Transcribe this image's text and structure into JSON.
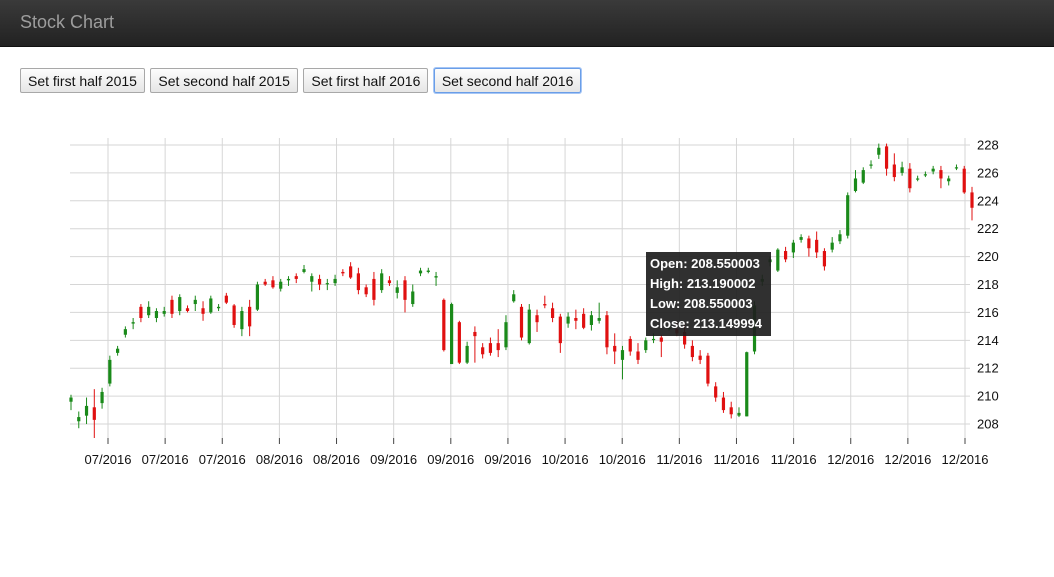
{
  "navbar": {
    "title": "Stock Chart"
  },
  "buttons": [
    {
      "label": "Set first half 2015"
    },
    {
      "label": "Set second half 2015"
    },
    {
      "label": "Set first half 2016"
    },
    {
      "label": "Set second half 2016"
    }
  ],
  "tooltip": {
    "open": "Open: 208.550003",
    "high": "High: 213.190002",
    "low": "Low: 208.550003",
    "close": "Close: 213.149994"
  },
  "colors": {
    "up": "#1a8a1a",
    "down": "#e01010",
    "grid": "#d6d6d6"
  },
  "chart_data": {
    "type": "candlestick",
    "y_ticks": [
      208,
      210,
      212,
      214,
      216,
      218,
      220,
      222,
      224,
      226,
      228
    ],
    "x_tick_labels": [
      "07/2016",
      "07/2016",
      "07/2016",
      "08/2016",
      "08/2016",
      "09/2016",
      "09/2016",
      "09/2016",
      "10/2016",
      "10/2016",
      "11/2016",
      "11/2016",
      "11/2016",
      "12/2016",
      "12/2016",
      "12/2016"
    ],
    "ylim": [
      207.0,
      228.5
    ],
    "y_axis_position": "right",
    "grid": true,
    "series": [
      {
        "o": 209.6,
        "h": 210.1,
        "l": 209.0,
        "c": 209.9
      },
      {
        "o": 208.2,
        "h": 208.9,
        "l": 207.7,
        "c": 208.5
      },
      {
        "o": 208.6,
        "h": 209.9,
        "l": 208.0,
        "c": 209.3
      },
      {
        "o": 209.2,
        "h": 210.5,
        "l": 207.0,
        "c": 208.3
      },
      {
        "o": 209.5,
        "h": 210.6,
        "l": 209.1,
        "c": 210.3
      },
      {
        "o": 210.9,
        "h": 212.9,
        "l": 210.7,
        "c": 212.6
      },
      {
        "o": 213.1,
        "h": 213.6,
        "l": 212.9,
        "c": 213.4
      },
      {
        "o": 214.4,
        "h": 215.0,
        "l": 214.2,
        "c": 214.8
      },
      {
        "o": 215.2,
        "h": 215.6,
        "l": 214.8,
        "c": 215.3
      },
      {
        "o": 216.4,
        "h": 216.6,
        "l": 215.3,
        "c": 215.6
      },
      {
        "o": 215.8,
        "h": 216.8,
        "l": 215.6,
        "c": 216.4
      },
      {
        "o": 215.6,
        "h": 216.3,
        "l": 215.3,
        "c": 216.1
      },
      {
        "o": 215.9,
        "h": 216.4,
        "l": 215.7,
        "c": 216.1
      },
      {
        "o": 216.9,
        "h": 217.2,
        "l": 215.6,
        "c": 215.9
      },
      {
        "o": 216.1,
        "h": 217.3,
        "l": 215.8,
        "c": 217.1
      },
      {
        "o": 216.3,
        "h": 216.5,
        "l": 216.0,
        "c": 216.1
      },
      {
        "o": 216.6,
        "h": 217.2,
        "l": 216.1,
        "c": 216.9
      },
      {
        "o": 216.3,
        "h": 216.8,
        "l": 215.4,
        "c": 215.9
      },
      {
        "o": 216.0,
        "h": 217.2,
        "l": 215.9,
        "c": 217.0
      },
      {
        "o": 216.3,
        "h": 216.6,
        "l": 216.1,
        "c": 216.4
      },
      {
        "o": 217.2,
        "h": 217.4,
        "l": 216.6,
        "c": 216.7
      },
      {
        "o": 216.5,
        "h": 216.6,
        "l": 214.9,
        "c": 215.1
      },
      {
        "o": 214.8,
        "h": 216.4,
        "l": 214.3,
        "c": 216.1
      },
      {
        "o": 216.4,
        "h": 216.9,
        "l": 214.3,
        "c": 215.0
      },
      {
        "o": 216.2,
        "h": 218.2,
        "l": 216.1,
        "c": 218.0
      },
      {
        "o": 218.2,
        "h": 218.4,
        "l": 217.9,
        "c": 218.0
      },
      {
        "o": 218.3,
        "h": 218.6,
        "l": 217.7,
        "c": 217.8
      },
      {
        "o": 217.7,
        "h": 218.4,
        "l": 217.5,
        "c": 218.2
      },
      {
        "o": 218.3,
        "h": 218.6,
        "l": 217.9,
        "c": 218.4
      },
      {
        "o": 218.6,
        "h": 218.8,
        "l": 218.1,
        "c": 218.4
      },
      {
        "o": 218.9,
        "h": 219.4,
        "l": 218.8,
        "c": 219.1
      },
      {
        "o": 218.2,
        "h": 218.8,
        "l": 217.5,
        "c": 218.6
      },
      {
        "o": 218.4,
        "h": 218.7,
        "l": 217.6,
        "c": 218.0
      },
      {
        "o": 218.1,
        "h": 218.4,
        "l": 217.6,
        "c": 218.1
      },
      {
        "o": 218.1,
        "h": 218.7,
        "l": 217.9,
        "c": 218.4
      },
      {
        "o": 218.9,
        "h": 219.1,
        "l": 218.6,
        "c": 218.8
      },
      {
        "o": 219.3,
        "h": 219.6,
        "l": 218.4,
        "c": 218.5
      },
      {
        "o": 218.8,
        "h": 219.2,
        "l": 217.3,
        "c": 217.6
      },
      {
        "o": 217.8,
        "h": 218.0,
        "l": 217.1,
        "c": 217.3
      },
      {
        "o": 218.4,
        "h": 218.9,
        "l": 216.5,
        "c": 216.9
      },
      {
        "o": 217.6,
        "h": 219.1,
        "l": 217.4,
        "c": 218.8
      },
      {
        "o": 218.3,
        "h": 218.6,
        "l": 217.9,
        "c": 218.1
      },
      {
        "o": 217.4,
        "h": 218.3,
        "l": 217.0,
        "c": 217.8
      },
      {
        "o": 218.3,
        "h": 218.6,
        "l": 216.0,
        "c": 216.9
      },
      {
        "o": 216.6,
        "h": 218.0,
        "l": 216.4,
        "c": 217.5
      },
      {
        "o": 218.8,
        "h": 219.2,
        "l": 218.6,
        "c": 219.0
      },
      {
        "o": 218.9,
        "h": 219.2,
        "l": 218.8,
        "c": 219.0
      },
      {
        "o": 218.5,
        "h": 218.9,
        "l": 217.9,
        "c": 218.6
      },
      {
        "o": 216.9,
        "h": 217.0,
        "l": 213.2,
        "c": 213.3
      },
      {
        "o": 212.3,
        "h": 216.7,
        "l": 212.3,
        "c": 216.6
      },
      {
        "o": 215.3,
        "h": 215.4,
        "l": 212.3,
        "c": 212.4
      },
      {
        "o": 212.4,
        "h": 213.9,
        "l": 212.3,
        "c": 213.6
      },
      {
        "o": 214.6,
        "h": 215.0,
        "l": 212.4,
        "c": 214.3
      },
      {
        "o": 213.5,
        "h": 213.8,
        "l": 212.7,
        "c": 213.0
      },
      {
        "o": 213.8,
        "h": 214.2,
        "l": 212.9,
        "c": 213.1
      },
      {
        "o": 213.8,
        "h": 214.8,
        "l": 212.8,
        "c": 213.3
      },
      {
        "o": 213.5,
        "h": 215.8,
        "l": 213.3,
        "c": 215.3
      },
      {
        "o": 216.8,
        "h": 217.6,
        "l": 216.7,
        "c": 217.3
      },
      {
        "o": 216.4,
        "h": 216.6,
        "l": 214.0,
        "c": 214.2
      },
      {
        "o": 213.8,
        "h": 216.6,
        "l": 213.7,
        "c": 216.2
      },
      {
        "o": 215.8,
        "h": 216.2,
        "l": 214.6,
        "c": 215.3
      },
      {
        "o": 216.6,
        "h": 217.2,
        "l": 216.3,
        "c": 216.5
      },
      {
        "o": 216.3,
        "h": 216.7,
        "l": 215.3,
        "c": 215.6
      },
      {
        "o": 215.7,
        "h": 215.9,
        "l": 213.1,
        "c": 213.8
      },
      {
        "o": 215.2,
        "h": 216.0,
        "l": 214.9,
        "c": 215.7
      },
      {
        "o": 215.6,
        "h": 216.2,
        "l": 214.8,
        "c": 215.4
      },
      {
        "o": 215.9,
        "h": 216.3,
        "l": 214.8,
        "c": 214.9
      },
      {
        "o": 215.1,
        "h": 216.1,
        "l": 214.7,
        "c": 215.8
      },
      {
        "o": 215.4,
        "h": 216.7,
        "l": 215.2,
        "c": 215.6
      },
      {
        "o": 215.8,
        "h": 216.1,
        "l": 213.0,
        "c": 213.5
      },
      {
        "o": 213.6,
        "h": 214.5,
        "l": 212.3,
        "c": 213.2
      },
      {
        "o": 212.6,
        "h": 213.6,
        "l": 211.2,
        "c": 213.3
      },
      {
        "o": 214.1,
        "h": 214.3,
        "l": 212.9,
        "c": 213.2
      },
      {
        "o": 213.2,
        "h": 213.8,
        "l": 212.3,
        "c": 212.6
      },
      {
        "o": 213.3,
        "h": 214.2,
        "l": 213.1,
        "c": 214.0
      },
      {
        "o": 214.1,
        "h": 214.5,
        "l": 213.8,
        "c": 214.1
      },
      {
        "o": 214.2,
        "h": 214.4,
        "l": 212.8,
        "c": 213.9
      },
      {
        "o": 214.9,
        "h": 215.3,
        "l": 214.7,
        "c": 214.9
      },
      {
        "o": 214.8,
        "h": 215.4,
        "l": 214.3,
        "c": 214.5
      },
      {
        "o": 214.6,
        "h": 215.2,
        "l": 213.4,
        "c": 213.7
      },
      {
        "o": 213.6,
        "h": 214.0,
        "l": 212.5,
        "c": 212.8
      },
      {
        "o": 212.9,
        "h": 213.3,
        "l": 212.3,
        "c": 212.6
      },
      {
        "o": 212.9,
        "h": 213.1,
        "l": 210.7,
        "c": 210.9
      },
      {
        "o": 210.7,
        "h": 211.0,
        "l": 209.6,
        "c": 209.9
      },
      {
        "o": 209.9,
        "h": 210.3,
        "l": 208.8,
        "c": 209.0
      },
      {
        "o": 209.2,
        "h": 209.6,
        "l": 208.4,
        "c": 208.7
      },
      {
        "o": 208.6,
        "h": 209.2,
        "l": 208.5,
        "c": 208.8
      },
      {
        "o": 208.55,
        "h": 213.19,
        "l": 208.55,
        "c": 213.15
      },
      {
        "o": 213.2,
        "h": 216.8,
        "l": 213.0,
        "c": 216.5
      },
      {
        "o": 218.2,
        "h": 218.7,
        "l": 217.9,
        "c": 218.4
      },
      {
        "o": 219.6,
        "h": 220.0,
        "l": 219.3,
        "c": 219.8
      },
      {
        "o": 219.0,
        "h": 220.6,
        "l": 218.9,
        "c": 220.5
      },
      {
        "o": 220.4,
        "h": 220.7,
        "l": 219.6,
        "c": 219.8
      },
      {
        "o": 220.3,
        "h": 221.2,
        "l": 219.9,
        "c": 221.0
      },
      {
        "o": 221.2,
        "h": 221.6,
        "l": 221.0,
        "c": 221.4
      },
      {
        "o": 221.3,
        "h": 221.5,
        "l": 220.0,
        "c": 220.6
      },
      {
        "o": 221.2,
        "h": 221.8,
        "l": 219.9,
        "c": 220.3
      },
      {
        "o": 220.4,
        "h": 220.6,
        "l": 219.0,
        "c": 219.3
      },
      {
        "o": 220.5,
        "h": 221.4,
        "l": 220.3,
        "c": 221.0
      },
      {
        "o": 221.1,
        "h": 221.9,
        "l": 220.9,
        "c": 221.6
      },
      {
        "o": 221.5,
        "h": 224.6,
        "l": 221.3,
        "c": 224.4
      },
      {
        "o": 224.7,
        "h": 226.2,
        "l": 224.6,
        "c": 225.6
      },
      {
        "o": 225.3,
        "h": 226.4,
        "l": 225.2,
        "c": 226.2
      },
      {
        "o": 226.6,
        "h": 226.9,
        "l": 226.3,
        "c": 226.6
      },
      {
        "o": 227.3,
        "h": 228.1,
        "l": 227.0,
        "c": 227.8
      },
      {
        "o": 227.9,
        "h": 228.1,
        "l": 225.8,
        "c": 226.3
      },
      {
        "o": 226.6,
        "h": 227.4,
        "l": 225.4,
        "c": 225.7
      },
      {
        "o": 226.0,
        "h": 226.8,
        "l": 225.8,
        "c": 226.4
      },
      {
        "o": 226.3,
        "h": 226.7,
        "l": 224.6,
        "c": 224.9
      },
      {
        "o": 225.6,
        "h": 225.8,
        "l": 225.4,
        "c": 225.6
      },
      {
        "o": 225.9,
        "h": 226.1,
        "l": 225.7,
        "c": 225.9
      },
      {
        "o": 226.1,
        "h": 226.5,
        "l": 225.9,
        "c": 226.3
      },
      {
        "o": 226.2,
        "h": 226.5,
        "l": 224.9,
        "c": 225.6
      },
      {
        "o": 225.4,
        "h": 225.8,
        "l": 225.1,
        "c": 225.6
      },
      {
        "o": 226.4,
        "h": 226.6,
        "l": 226.2,
        "c": 226.4
      },
      {
        "o": 226.3,
        "h": 226.5,
        "l": 224.5,
        "c": 224.6
      },
      {
        "o": 224.6,
        "h": 225.0,
        "l": 222.6,
        "c": 223.5
      }
    ]
  }
}
